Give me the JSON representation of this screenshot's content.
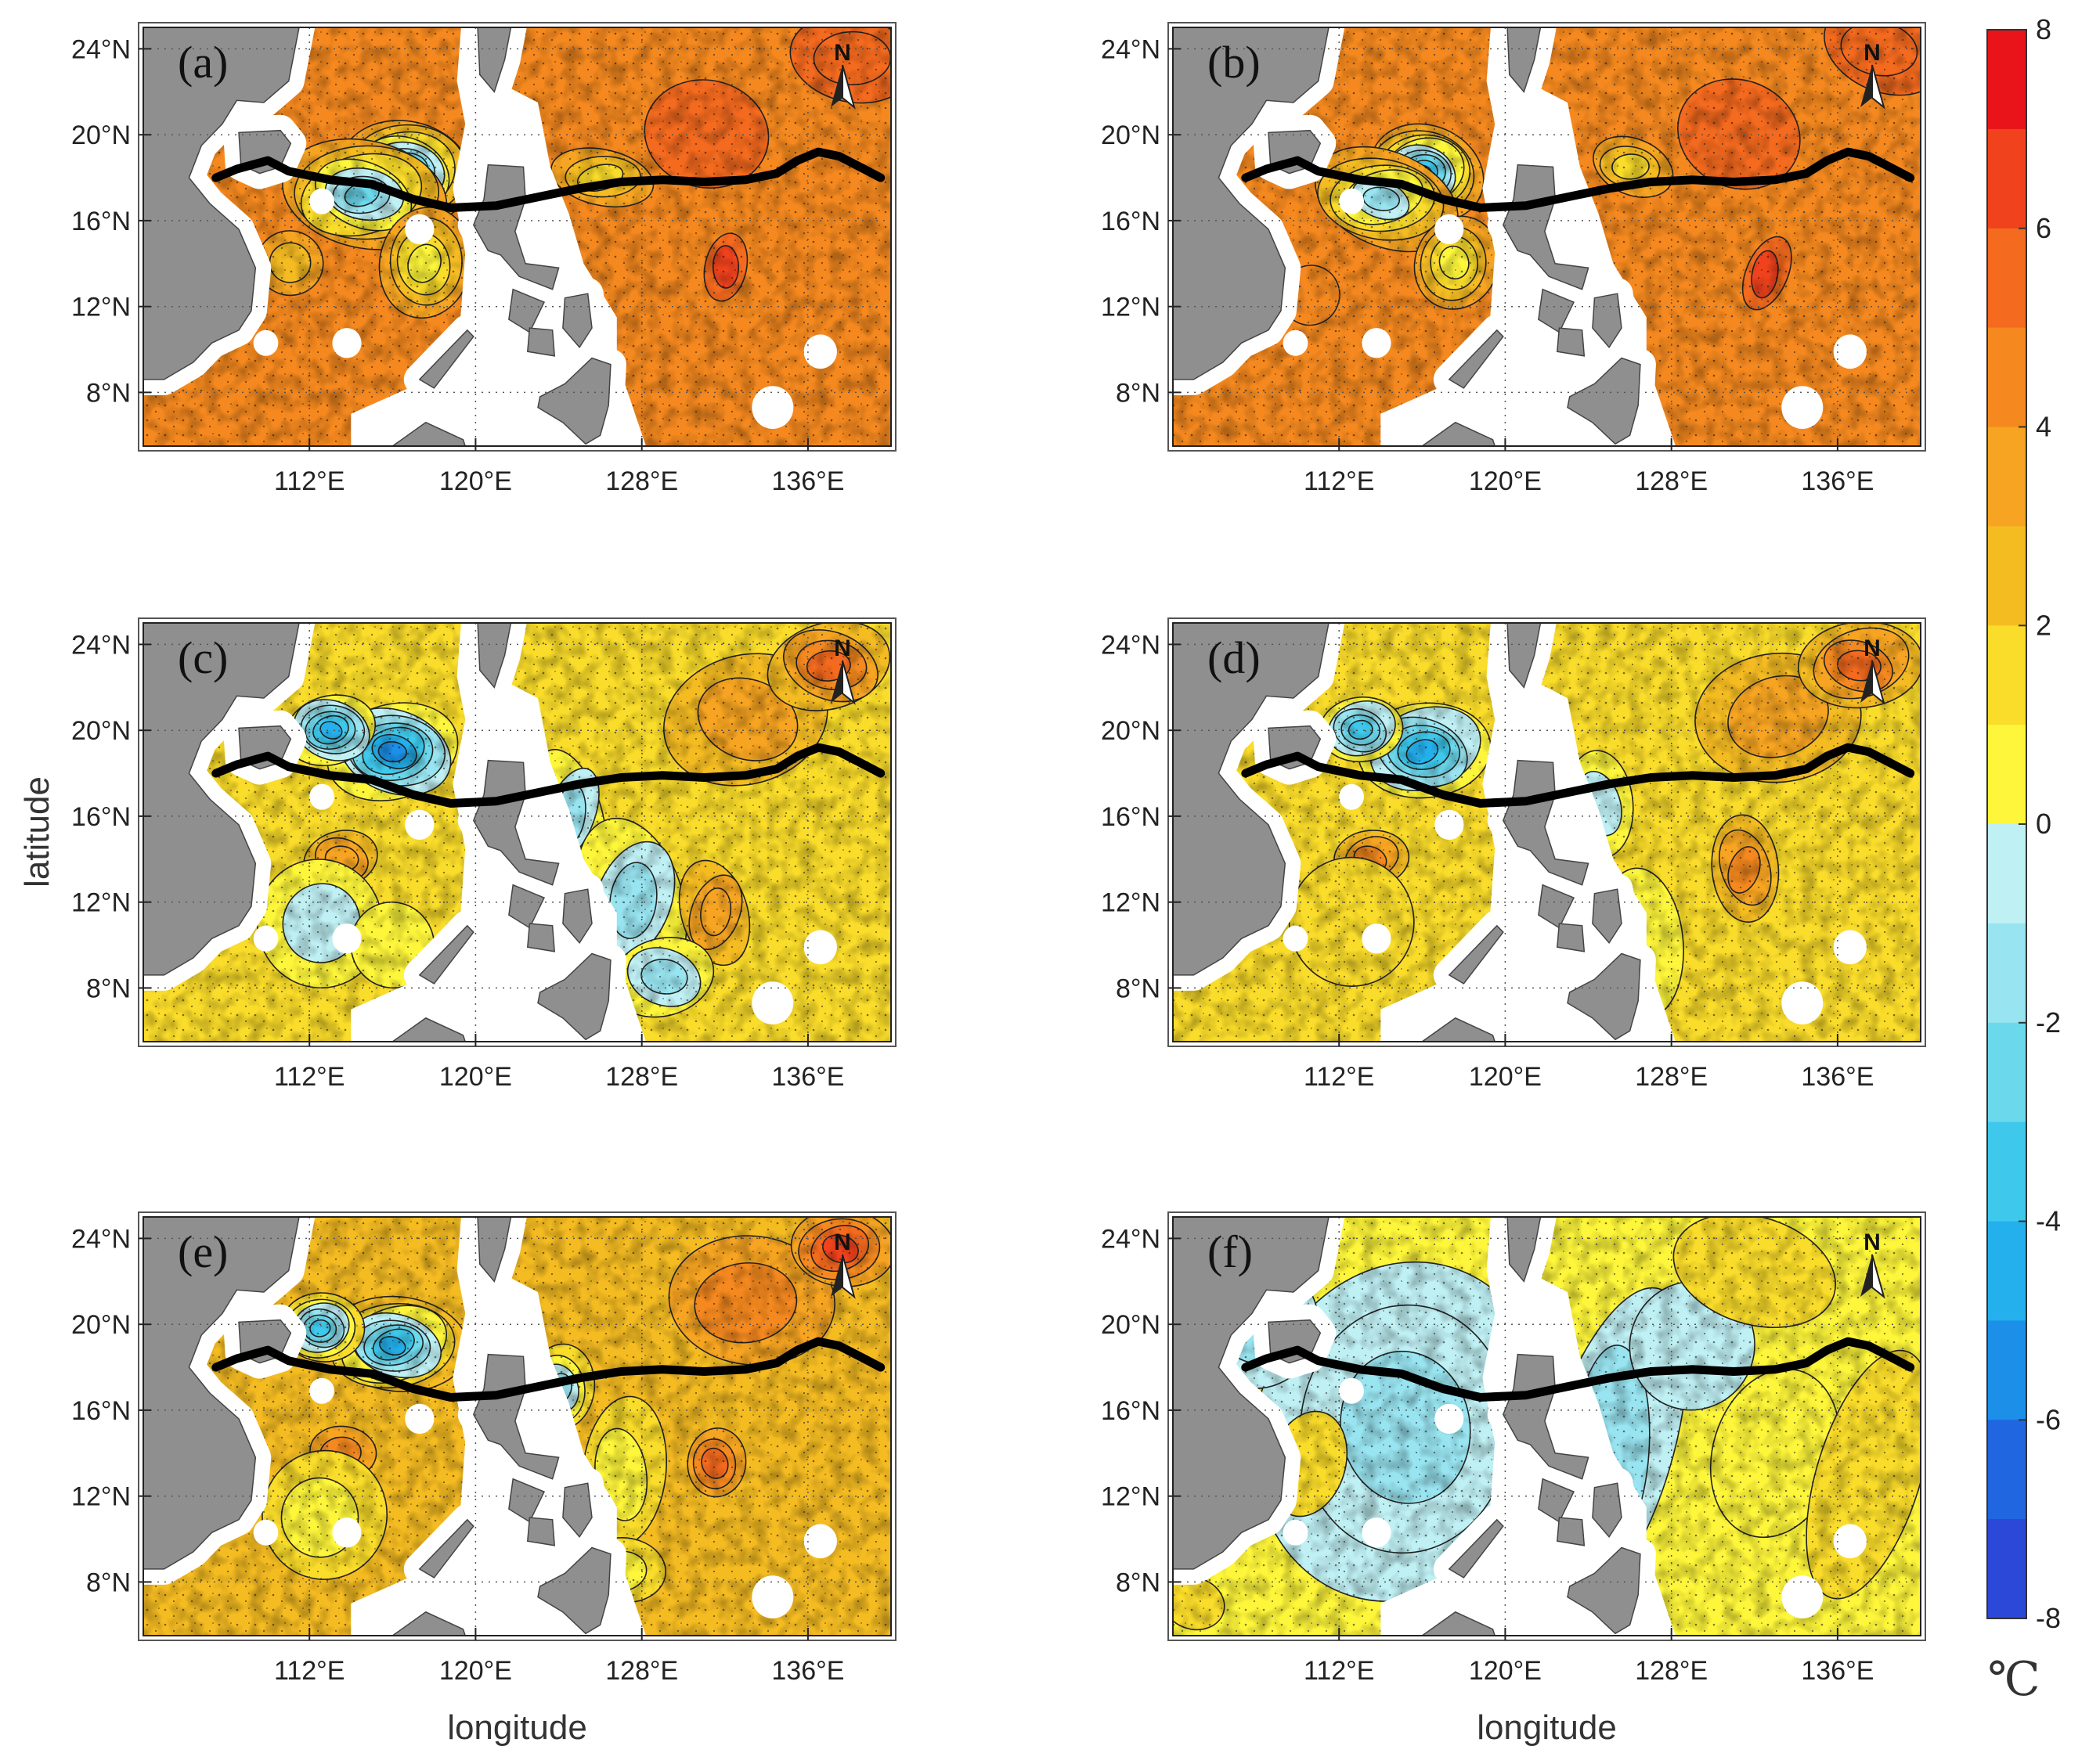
{
  "figure": {
    "x_axis_label": "longitude",
    "y_axis_label": "latitude",
    "unit": "℃",
    "north_arrow_label": "N"
  },
  "colorbar": {
    "ticks": [
      "8",
      "6",
      "4",
      "2",
      "0",
      "-2",
      "-4",
      "-6",
      "-8"
    ],
    "levels_top_to_bottom": [
      "#e8141a",
      "#f0421c",
      "#f46a1e",
      "#f5891f",
      "#f6a421",
      "#f5bc22",
      "#fadc2a",
      "#fef63a",
      "#bff0f4",
      "#98e4f0",
      "#6cd8ec",
      "#3ec8ec",
      "#24b0ec",
      "#1c90e8",
      "#2066e0",
      "#2c48d8"
    ]
  },
  "panels": [
    {
      "label": "(a)"
    },
    {
      "label": "(b)"
    },
    {
      "label": "(c)"
    },
    {
      "label": "(d)"
    },
    {
      "label": "(e)"
    },
    {
      "label": "(f)"
    }
  ],
  "chart_data": {
    "type": "heatmap",
    "title": "",
    "xlabel": "longitude",
    "ylabel": "latitude",
    "xlim": [
      104,
      140
    ],
    "ylim": [
      5.5,
      25
    ],
    "x_ticks": [
      "112°E",
      "120°E",
      "128°E",
      "136°E"
    ],
    "y_ticks": [
      "24°N",
      "20°N",
      "16°N",
      "12°N",
      "8°N"
    ],
    "colorbar_range": [
      -8,
      8
    ],
    "colorbar_unit": "℃",
    "track": {
      "lon": [
        107.5,
        108.5,
        110,
        111,
        113,
        115,
        117,
        118.8,
        121,
        123,
        125,
        127,
        129,
        131,
        133,
        134.5,
        135.5,
        136.5,
        137.5,
        138.5,
        139.5
      ],
      "lat": [
        18.0,
        18.4,
        18.8,
        18.3,
        17.9,
        17.7,
        17.0,
        16.6,
        16.7,
        17.1,
        17.5,
        17.8,
        17.9,
        17.8,
        17.9,
        18.2,
        18.8,
        19.2,
        19.0,
        18.5,
        18.0
      ]
    },
    "panels": [
      {
        "label": "(a)",
        "background_anomaly": 4.5,
        "features": [
          [
            116.5,
            18.2,
            -4,
            3.2,
            2.4
          ],
          [
            114.5,
            17.2,
            -2,
            4,
            2.5
          ],
          [
            117.5,
            14,
            1,
            2.2,
            2.6
          ],
          [
            111,
            14,
            3,
            1.6,
            1.5
          ],
          [
            132,
            13.8,
            6.5,
            1,
            1.6
          ],
          [
            126,
            18,
            1.5,
            2.5,
            1.3
          ],
          [
            138,
            23.5,
            6,
            3,
            2
          ],
          [
            131,
            20,
            5.5,
            3,
            2.5
          ]
        ]
      },
      {
        "label": "(b)",
        "background_anomaly": 4.5,
        "features": [
          [
            116,
            18.2,
            -4,
            2.8,
            2.2
          ],
          [
            114,
            17,
            -1.5,
            3.6,
            2.2
          ],
          [
            117.5,
            14,
            1,
            2,
            2.2
          ],
          [
            132.5,
            13.5,
            6.5,
            1,
            1.8
          ],
          [
            126,
            18.5,
            1.5,
            2,
            1.3
          ],
          [
            138,
            24,
            6,
            3,
            2
          ],
          [
            131,
            20,
            5.5,
            3,
            2.5
          ],
          [
            110.5,
            12.5,
            5,
            1.4,
            1.4
          ]
        ]
      },
      {
        "label": "(c)",
        "background_anomaly": 1.5,
        "features": [
          [
            116,
            19,
            -5,
            3.2,
            2.2
          ],
          [
            113,
            20,
            -4,
            2.2,
            1.6
          ],
          [
            113.5,
            14,
            4,
            1.8,
            1.3
          ],
          [
            112.5,
            11,
            -0.8,
            3,
            3
          ],
          [
            116,
            10,
            0.8,
            2,
            2
          ],
          [
            124.5,
            16,
            -1,
            1.6,
            3.2
          ],
          [
            127.5,
            12,
            -1.2,
            2.5,
            4
          ],
          [
            131.5,
            11.5,
            4,
            1.6,
            2.5
          ],
          [
            133,
            20.5,
            3.5,
            4,
            3
          ],
          [
            137,
            23,
            5.5,
            3,
            2
          ],
          [
            129,
            8.5,
            -1,
            2.5,
            1.8
          ]
        ]
      },
      {
        "label": "(d)",
        "background_anomaly": 1.8,
        "features": [
          [
            116,
            19,
            -4.5,
            3.2,
            2.2
          ],
          [
            113,
            20,
            -3,
            2,
            1.5
          ],
          [
            113.5,
            14,
            4.5,
            1.8,
            1.3
          ],
          [
            112.5,
            11,
            1.5,
            3,
            3
          ],
          [
            124.5,
            16.5,
            -0.5,
            1.6,
            2.5
          ],
          [
            131.5,
            13.5,
            4.5,
            1.6,
            2.5
          ],
          [
            133,
            20.5,
            4,
            4,
            3
          ],
          [
            137,
            23,
            5.5,
            3,
            2
          ],
          [
            126.5,
            10,
            0.8,
            2,
            3.5
          ]
        ]
      },
      {
        "label": "(e)",
        "background_anomaly": 3.0,
        "features": [
          [
            116,
            19,
            -4.5,
            3.4,
            2.2
          ],
          [
            112.5,
            19.8,
            -3,
            2,
            1.6
          ],
          [
            113.5,
            14,
            5,
            1.6,
            1.2
          ],
          [
            112.5,
            11,
            0.8,
            3,
            3
          ],
          [
            124,
            17,
            -1,
            1.6,
            2
          ],
          [
            127,
            13,
            1,
            2,
            3.5
          ],
          [
            131.5,
            13.5,
            5.5,
            1.4,
            1.6
          ],
          [
            133,
            21,
            5,
            4,
            3
          ],
          [
            137.5,
            23.5,
            7,
            2.5,
            1.8
          ],
          [
            127,
            8.5,
            1,
            2,
            1.5
          ]
        ]
      },
      {
        "label": "(f)",
        "background_anomaly": 0.8,
        "features": [
          [
            115,
            15,
            -1.8,
            7,
            8
          ],
          [
            108,
            20,
            -1,
            3,
            3
          ],
          [
            125,
            14,
            -1.5,
            3,
            8
          ],
          [
            129,
            19,
            -0.5,
            3,
            3
          ],
          [
            133,
            14,
            0.3,
            3,
            4
          ],
          [
            137.5,
            13,
            1.5,
            2.5,
            6
          ],
          [
            132,
            22.5,
            1.2,
            4,
            2.5
          ],
          [
            110.5,
            13.5,
            1.2,
            1.8,
            2.5
          ],
          [
            105,
            7,
            1.2,
            1.5,
            1.2
          ]
        ]
      }
    ]
  }
}
